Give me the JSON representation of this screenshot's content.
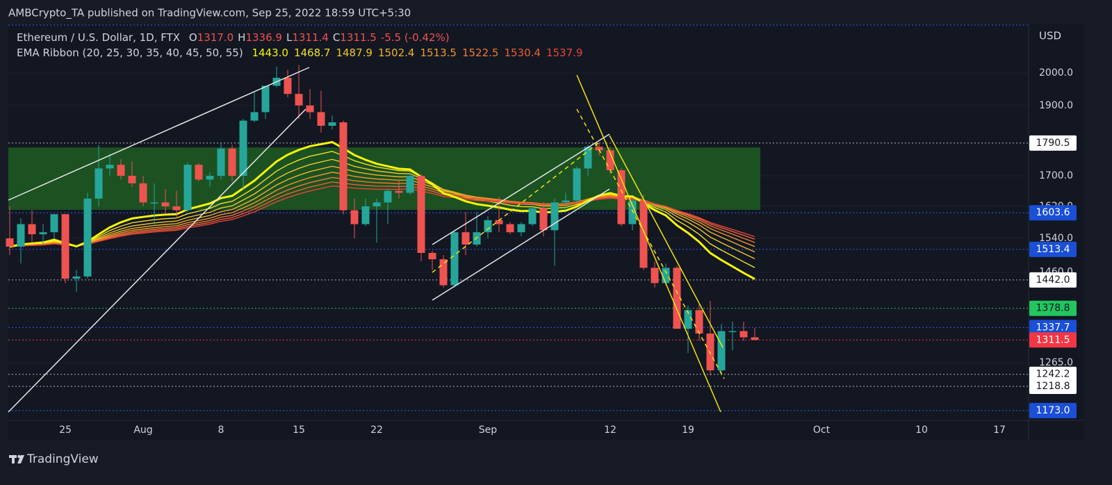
{
  "header": {
    "title": "AMBCrypto_TA published on TradingView.com, Sep 25, 2022 18:59 UTC+5:30"
  },
  "footer": {
    "brand": "TradingView"
  },
  "chart_data": {
    "type": "candlestick",
    "currency": "USD",
    "symbol_legend": {
      "name": "Ethereum / U.S. Dollar, 1D, FTX",
      "fields": [
        {
          "key": "O",
          "text": "1317.0"
        },
        {
          "key": "H",
          "text": "1336.9"
        },
        {
          "key": "L",
          "text": "1311.4"
        },
        {
          "key": "C",
          "text": "1311.5"
        }
      ],
      "change": "-5.5 (-0.42%)"
    },
    "ema_ribbon": {
      "label": "EMA Ribbon (20, 25, 30, 35, 40, 45, 50, 55)",
      "periods": [
        20,
        25,
        30,
        35,
        40,
        45,
        50,
        55
      ],
      "value_labels": [
        "1443.0",
        "1468.7",
        "1487.9",
        "1502.4",
        "1513.5",
        "1522.5",
        "1530.4",
        "1537.9"
      ],
      "colors": [
        "#f5f50a",
        "#f0e028",
        "#efc828",
        "#efb42a",
        "#ef982c",
        "#ef7a30",
        "#ee5e34",
        "#e8443a"
      ]
    },
    "categories": [
      null,
      null,
      null,
      null,
      null,
      "25",
      null,
      null,
      null,
      null,
      null,
      null,
      "Aug",
      null,
      null,
      null,
      null,
      null,
      null,
      "8",
      null,
      null,
      null,
      null,
      null,
      null,
      "15",
      null,
      null,
      null,
      null,
      null,
      null,
      "22",
      null,
      null,
      null,
      null,
      null,
      null,
      null,
      null,
      null,
      "Sep",
      null,
      null,
      null,
      null,
      null,
      null,
      null,
      null,
      null,
      null,
      "12",
      null,
      null,
      null,
      null,
      null,
      null,
      "19",
      null,
      null,
      null,
      null,
      null,
      null,
      null,
      null,
      null,
      null,
      null,
      "Oct",
      null,
      null,
      null,
      null,
      null,
      null,
      null,
      null,
      "10",
      null,
      null,
      null,
      null,
      null,
      null,
      "17",
      null,
      null
    ],
    "open": [
      1540,
      1520,
      1575,
      1550,
      1555,
      1600,
      1445,
      1450,
      1640,
      1720,
      1730,
      1700,
      1680,
      1630,
      1630,
      1620,
      1610,
      1730,
      1690,
      1700,
      1775,
      1700,
      1855,
      1880,
      1960,
      1985,
      1935,
      1900,
      1880,
      1840,
      1850,
      1610,
      1575,
      1620,
      1630,
      1660,
      1655,
      1700,
      1505,
      1490,
      1430,
      1555,
      1525,
      1555,
      1585,
      1575,
      1555,
      1575,
      1615,
      1560,
      1630,
      1635,
      1720,
      1780,
      1770,
      1715,
      1575,
      1635,
      1470,
      1435,
      1470,
      1335,
      1375,
      1325,
      1250,
      1330,
      1330,
      1317,
      null,
      null,
      null,
      null,
      null,
      null,
      null,
      null,
      null,
      null,
      null,
      null,
      null,
      null,
      null,
      null,
      null,
      null,
      null,
      null,
      null,
      null,
      null,
      null
    ],
    "high": [
      1620,
      1590,
      1610,
      1575,
      1600,
      1600,
      1465,
      1655,
      1785,
      1760,
      1745,
      1740,
      1700,
      1680,
      1665,
      1660,
      1735,
      1735,
      1710,
      1790,
      1785,
      1860,
      1940,
      1960,
      2020,
      2010,
      2025,
      1950,
      1945,
      1870,
      1855,
      1640,
      1640,
      1640,
      1665,
      1690,
      1710,
      1705,
      1510,
      1500,
      1560,
      1605,
      1605,
      1595,
      1645,
      1580,
      1580,
      1625,
      1630,
      1640,
      1655,
      1725,
      1785,
      1790,
      1780,
      1720,
      1640,
      1650,
      1485,
      1480,
      1475,
      1385,
      1390,
      1395,
      1345,
      1350,
      1350,
      1336.9,
      null,
      null,
      null,
      null,
      null,
      null,
      null,
      null,
      null,
      null,
      null,
      null,
      null,
      null,
      null,
      null,
      null,
      null,
      null,
      null,
      null,
      null,
      null,
      null
    ],
    "low": [
      1500,
      1480,
      1530,
      1525,
      1540,
      1435,
      1415,
      1445,
      1620,
      1700,
      1690,
      1670,
      1620,
      1570,
      1600,
      1590,
      1605,
      1685,
      1670,
      1690,
      1685,
      1665,
      1850,
      1860,
      1955,
      1925,
      1860,
      1860,
      1820,
      1830,
      1600,
      1540,
      1570,
      1530,
      1575,
      1640,
      1650,
      1485,
      1465,
      1425,
      1425,
      1500,
      1520,
      1540,
      1555,
      1550,
      1545,
      1570,
      1545,
      1475,
      1610,
      1630,
      1700,
      1755,
      1705,
      1570,
      1560,
      1465,
      1425,
      1430,
      1335,
      1285,
      1310,
      1240,
      1240,
      1290,
      1310,
      1311.4,
      null,
      null,
      null,
      null,
      null,
      null,
      null,
      null,
      null,
      null,
      null,
      null,
      null,
      null,
      null,
      null,
      null,
      null,
      null,
      null,
      null,
      null,
      null,
      null
    ],
    "close": [
      1520,
      1575,
      1550,
      1555,
      1600,
      1445,
      1450,
      1640,
      1720,
      1730,
      1700,
      1680,
      1630,
      1630,
      1620,
      1610,
      1730,
      1690,
      1700,
      1775,
      1700,
      1855,
      1880,
      1960,
      1985,
      1935,
      1900,
      1880,
      1840,
      1850,
      1610,
      1575,
      1620,
      1630,
      1660,
      1655,
      1700,
      1505,
      1490,
      1430,
      1555,
      1525,
      1555,
      1585,
      1575,
      1555,
      1575,
      1615,
      1560,
      1630,
      1635,
      1720,
      1780,
      1770,
      1715,
      1575,
      1635,
      1470,
      1435,
      1470,
      1335,
      1375,
      1325,
      1250,
      1330,
      1330,
      1317,
      1311.5,
      null,
      null,
      null,
      null,
      null,
      null,
      null,
      null,
      null,
      null,
      null,
      null,
      null,
      null,
      null,
      null,
      null,
      null,
      null,
      null,
      null,
      null,
      null,
      null
    ],
    "up_color": "#26a69a",
    "down_color": "#ef5350",
    "log_scale": true,
    "grid": true,
    "ylim": [
      1155,
      2160
    ],
    "yticks": [
      {
        "value": 2000,
        "label": "2000.0"
      },
      {
        "value": 1900,
        "label": "1900.0"
      },
      {
        "value": 1700,
        "label": "1700.0"
      },
      {
        "value": 1620,
        "label": "1620.0"
      },
      {
        "value": 1540,
        "label": "1540.0"
      },
      {
        "value": 1460,
        "label": "1460.0"
      },
      {
        "value": 1265,
        "label": "1265.0"
      }
    ],
    "zone": {
      "low": 1611,
      "high": 1778,
      "color": "#1f5c22"
    },
    "price_levels": [
      {
        "value": 1790.5,
        "label": "1790.5",
        "bg": "#ffffff",
        "fg": "#131722",
        "line": "#b2b5be"
      },
      {
        "value": 1603.6,
        "label": "1603.6",
        "bg": "#1a4fd6",
        "fg": "#ffffff",
        "line": "#2962ff"
      },
      {
        "value": 1513.4,
        "label": "1513.4",
        "bg": "#1a4fd6",
        "fg": "#ffffff",
        "line": "#2962ff"
      },
      {
        "value": 1442.0,
        "label": "1442.0",
        "bg": "#ffffff",
        "fg": "#131722",
        "line": "#b2b5be"
      },
      {
        "value": 1378.8,
        "label": "1378.8",
        "bg": "#22c55e",
        "fg": "#131722",
        "line": "#22c55e"
      },
      {
        "value": 1337.7,
        "label": "1337.7",
        "bg": "#1a4fd6",
        "fg": "#ffffff",
        "line": "#2962ff"
      },
      {
        "value": 1311.5,
        "label": "1311.5",
        "bg": "#f23645",
        "fg": "#ffffff",
        "line": "#f23645"
      },
      {
        "value": 1242.2,
        "label": "1242.2",
        "bg": "#ffffff",
        "fg": "#131722",
        "line": "#b2b5be"
      },
      {
        "value": 1218.8,
        "label": "1218.8",
        "bg": "#ffffff",
        "fg": "#131722",
        "line": "#b2b5be"
      },
      {
        "value": 1173.0,
        "label": "1173.0",
        "bg": "#1a4fd6",
        "fg": "#ffffff",
        "line": "#2962ff"
      }
    ]
  }
}
